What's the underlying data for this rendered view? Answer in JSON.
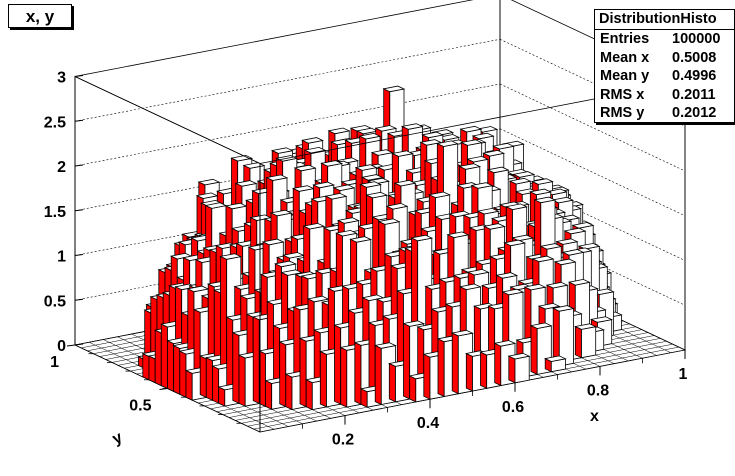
{
  "title": "x, y",
  "stats": {
    "name": "DistributionHisto",
    "rows": [
      {
        "label": "Entries",
        "value": "100000"
      },
      {
        "label": "Mean x",
        "value": "0.5008"
      },
      {
        "label": "Mean y",
        "value": "0.4996"
      },
      {
        "label": "RMS x",
        "value": "0.2011"
      },
      {
        "label": "RMS y",
        "value": "0.2012"
      }
    ]
  },
  "chart_data": {
    "type": "lego",
    "title": "x, y",
    "xlabel": "x",
    "ylabel": "y",
    "zlabel": "",
    "xlim": [
      0,
      1
    ],
    "ylim": [
      0,
      1
    ],
    "zlim": [
      0,
      3
    ],
    "x_ticks": [
      0.2,
      0.4,
      0.6,
      0.8,
      1
    ],
    "y_ticks": [
      0.5,
      1
    ],
    "z_ticks": [
      0,
      0.5,
      1,
      1.5,
      2,
      2.5,
      3
    ],
    "x_tick_labels": [
      "0.2",
      "0.4",
      "0.6",
      "0.8",
      "1"
    ],
    "y_tick_labels": [
      "0.5",
      "1"
    ],
    "z_tick_labels": [
      "0",
      "0.5",
      "1",
      "1.5",
      "2",
      "2.5",
      "3"
    ],
    "bins": [
      30,
      30
    ],
    "entries": 100000,
    "mean_x": 0.5008,
    "mean_y": 0.4996,
    "rms_x": 0.2011,
    "rms_y": 0.2012,
    "shape": "hemispherical dome of bars inside a disc of radius ~0.5 centred at (0.5, 0.5); bar heights mostly 1–2.7",
    "peak_height": 2.7,
    "grid": true,
    "colors": {
      "bar_front": "#ffffff",
      "bar_side": "#ff0000",
      "bar_top": "#ffffff",
      "outline": "#000000"
    }
  }
}
